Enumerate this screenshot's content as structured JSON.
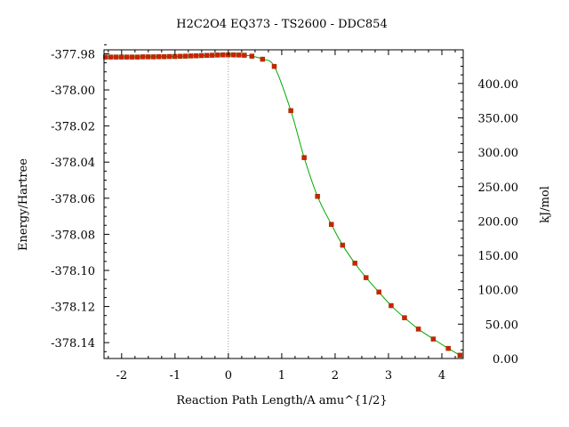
{
  "chart_data": {
    "type": "line",
    "title": "H2C2O4    EQ373 - TS2600 - DDC854",
    "xlabel": "Reaction Path Length/A amu^{1/2}",
    "ylabel": "Energy/Hartree",
    "y2label": "kJ/mol",
    "xlim": [
      -2.33,
      4.4
    ],
    "ylim": [
      -378.1488,
      -377.9778
    ],
    "y2lim": [
      0.0,
      448.92
    ],
    "xticks": [
      -2,
      -1,
      0,
      1,
      2,
      3,
      4
    ],
    "xtick_labels": [
      "-2",
      "-1",
      "0",
      "1",
      "2",
      "3",
      "4"
    ],
    "yticks": [
      -377.98,
      -378.0,
      -378.02,
      -378.04,
      -378.06,
      -378.08,
      -378.1,
      -378.12,
      -378.14
    ],
    "ytick_labels": [
      "-377.98",
      "-378.00",
      "-378.02",
      "-378.04",
      "-378.06",
      "-378.08",
      "-378.10",
      "-378.12",
      "-378.14"
    ],
    "y2ticks": [
      0,
      50,
      100,
      150,
      200,
      250,
      300,
      350,
      400
    ],
    "y2tick_labels": [
      "0.00",
      "50.00",
      "100.00",
      "150.00",
      "200.00",
      "250.00",
      "300.00",
      "350.00",
      "400.00"
    ],
    "ts_marker_x": 0,
    "grid": false,
    "colors": {
      "line": "#00aa00",
      "points": "#cc2200",
      "ts_line": "#999999"
    },
    "series": [
      {
        "x": [
          -2.3,
          -2.2,
          -2.1,
          -2.0,
          -1.9,
          -1.8,
          -1.7,
          -1.6,
          -1.5,
          -1.4,
          -1.3,
          -1.2,
          -1.1,
          -1.0,
          -0.9,
          -0.8,
          -0.7,
          -0.6,
          -0.5,
          -0.4,
          -0.3,
          -0.2,
          -0.1,
          0.0,
          0.1,
          0.2,
          0.3,
          0.44,
          0.64,
          0.86,
          1.17,
          1.42,
          1.67,
          1.93,
          2.14,
          2.37,
          2.58,
          2.82,
          3.05,
          3.3,
          3.56,
          3.84,
          4.12,
          4.34
        ],
        "y": [
          -377.9818,
          -377.9818,
          -377.9818,
          -377.9818,
          -377.9818,
          -377.9818,
          -377.9818,
          -377.9817,
          -377.9817,
          -377.9817,
          -377.9816,
          -377.9816,
          -377.9815,
          -377.9815,
          -377.9814,
          -377.9813,
          -377.9812,
          -377.9811,
          -377.981,
          -377.9809,
          -377.9808,
          -377.9807,
          -377.9806,
          -377.9806,
          -377.9806,
          -377.9807,
          -377.9808,
          -377.9813,
          -377.983,
          -377.987,
          -378.0115,
          -378.0375,
          -378.059,
          -378.0745,
          -378.086,
          -378.096,
          -378.104,
          -378.112,
          -378.1195,
          -378.1262,
          -378.1325,
          -378.138,
          -378.1432,
          -378.147
        ]
      }
    ]
  }
}
